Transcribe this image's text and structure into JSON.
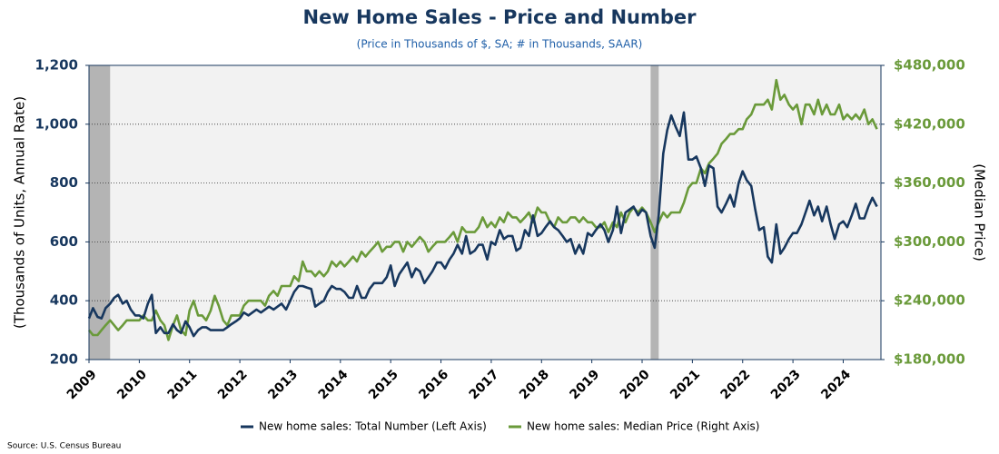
{
  "chart_data": {
    "type": "line",
    "title": "New Home Sales - Price and Number",
    "subtitle": "(Price in Thousands of $, SA; # in Thousands, SAAR)",
    "ylabel": "(Thousands of Units, Annual Rate)",
    "y2label": "(Median Price)",
    "source": "Source: U.S. Census Bureau",
    "xlim": [
      2009,
      2024.75
    ],
    "xticks": [
      2009,
      2010,
      2011,
      2012,
      2013,
      2014,
      2015,
      2016,
      2017,
      2018,
      2019,
      2020,
      2021,
      2022,
      2023,
      2024
    ],
    "ylim": [
      200,
      1200
    ],
    "yticks": [
      200,
      400,
      600,
      800,
      {
        "value": 1000,
        "label": "1,000"
      },
      {
        "value": 1200,
        "label": "1,200"
      }
    ],
    "y2lim": [
      180000,
      480000
    ],
    "y2ticks": [
      {
        "value": 180000,
        "label": "$180,000"
      },
      {
        "value": 240000,
        "label": "$240,000"
      },
      {
        "value": 300000,
        "label": "$300,000"
      },
      {
        "value": 360000,
        "label": "$360,000"
      },
      {
        "value": 420000,
        "label": "$420,000"
      },
      {
        "value": 480000,
        "label": "$480,000"
      }
    ],
    "grid": true,
    "shaded_periods": [
      [
        2009,
        2009.42
      ],
      [
        2020.17,
        2020.33
      ]
    ],
    "shade_color": "#b4b4b4",
    "background": "#f2f2f2",
    "x": [
      2009,
      2009.08,
      2009.17,
      2009.25,
      2009.33,
      2009.42,
      2009.5,
      2009.58,
      2009.67,
      2009.75,
      2009.83,
      2009.92,
      2010,
      2010.08,
      2010.17,
      2010.25,
      2010.33,
      2010.42,
      2010.5,
      2010.58,
      2010.67,
      2010.75,
      2010.83,
      2010.92,
      2011,
      2011.08,
      2011.17,
      2011.25,
      2011.33,
      2011.42,
      2011.5,
      2011.58,
      2011.67,
      2011.75,
      2011.83,
      2011.92,
      2012,
      2012.08,
      2012.17,
      2012.25,
      2012.33,
      2012.42,
      2012.5,
      2012.58,
      2012.67,
      2012.75,
      2012.83,
      2012.92,
      2013,
      2013.08,
      2013.17,
      2013.25,
      2013.33,
      2013.42,
      2013.5,
      2013.58,
      2013.67,
      2013.75,
      2013.83,
      2013.92,
      2014,
      2014.08,
      2014.17,
      2014.25,
      2014.33,
      2014.42,
      2014.5,
      2014.58,
      2014.67,
      2014.75,
      2014.83,
      2014.92,
      2015,
      2015.08,
      2015.17,
      2015.25,
      2015.33,
      2015.42,
      2015.5,
      2015.58,
      2015.67,
      2015.75,
      2015.83,
      2015.92,
      2016,
      2016.08,
      2016.17,
      2016.25,
      2016.33,
      2016.42,
      2016.5,
      2016.58,
      2016.67,
      2016.75,
      2016.83,
      2016.92,
      2017,
      2017.08,
      2017.17,
      2017.25,
      2017.33,
      2017.42,
      2017.5,
      2017.58,
      2017.67,
      2017.75,
      2017.83,
      2017.92,
      2018,
      2018.08,
      2018.17,
      2018.25,
      2018.33,
      2018.42,
      2018.5,
      2018.58,
      2018.67,
      2018.75,
      2018.83,
      2018.92,
      2019,
      2019.08,
      2019.17,
      2019.25,
      2019.33,
      2019.42,
      2019.5,
      2019.58,
      2019.67,
      2019.75,
      2019.83,
      2019.92,
      2020,
      2020.08,
      2020.17,
      2020.25,
      2020.33,
      2020.42,
      2020.5,
      2020.58,
      2020.67,
      2020.75,
      2020.83,
      2020.92,
      2021,
      2021.08,
      2021.17,
      2021.25,
      2021.33,
      2021.42,
      2021.5,
      2021.58,
      2021.67,
      2021.75,
      2021.83,
      2021.92,
      2022,
      2022.08,
      2022.17,
      2022.25,
      2022.33,
      2022.42,
      2022.5,
      2022.58,
      2022.67,
      2022.75,
      2022.83,
      2022.92,
      2023,
      2023.08,
      2023.17,
      2023.25,
      2023.33,
      2023.42,
      2023.5,
      2023.58,
      2023.67,
      2023.75,
      2023.83,
      2023.92,
      2024,
      2024.08,
      2024.17,
      2024.25,
      2024.33,
      2024.42,
      2024.5,
      2024.58,
      2024.67
    ],
    "series": [
      {
        "name": "New home sales: Total Number (Left Axis)",
        "color": "#17375e",
        "axis": "y",
        "values": [
          340,
          375,
          345,
          340,
          375,
          390,
          410,
          420,
          390,
          400,
          370,
          350,
          350,
          340,
          390,
          420,
          290,
          310,
          290,
          290,
          320,
          300,
          290,
          330,
          310,
          280,
          300,
          310,
          310,
          300,
          300,
          300,
          300,
          310,
          320,
          330,
          340,
          360,
          350,
          360,
          370,
          360,
          370,
          380,
          370,
          380,
          390,
          370,
          400,
          430,
          450,
          450,
          445,
          440,
          380,
          390,
          400,
          430,
          450,
          440,
          440,
          430,
          410,
          410,
          450,
          410,
          410,
          440,
          460,
          460,
          460,
          480,
          520,
          450,
          490,
          510,
          530,
          480,
          510,
          500,
          460,
          480,
          500,
          530,
          530,
          510,
          540,
          560,
          590,
          560,
          620,
          560,
          570,
          590,
          590,
          540,
          600,
          590,
          640,
          610,
          620,
          620,
          570,
          580,
          640,
          620,
          690,
          620,
          630,
          650,
          670,
          650,
          640,
          620,
          600,
          610,
          560,
          590,
          560,
          630,
          620,
          640,
          660,
          640,
          600,
          640,
          720,
          630,
          700,
          710,
          720,
          690,
          710,
          700,
          620,
          580,
          690,
          900,
          980,
          1030,
          990,
          960,
          1040,
          880,
          880,
          890,
          850,
          790,
          860,
          850,
          720,
          700,
          730,
          760,
          720,
          800,
          840,
          810,
          790,
          710,
          640,
          650,
          550,
          530,
          660,
          560,
          580,
          610,
          630,
          630,
          660,
          700,
          740,
          690,
          720,
          670,
          720,
          660,
          610,
          660,
          670,
          650,
          690,
          730,
          680,
          680,
          720,
          750,
          720
        ]
      },
      {
        "name": "New home sales: Median Price (Right Axis)",
        "color": "#6a9a3a",
        "axis": "y2",
        "values": [
          210000,
          205000,
          205000,
          210000,
          215000,
          220000,
          215000,
          210000,
          215000,
          220000,
          220000,
          220000,
          220000,
          225000,
          220000,
          220000,
          230000,
          220000,
          215000,
          200000,
          215000,
          225000,
          210000,
          205000,
          230000,
          240000,
          225000,
          225000,
          220000,
          230000,
          245000,
          235000,
          220000,
          215000,
          225000,
          225000,
          225000,
          235000,
          240000,
          240000,
          240000,
          240000,
          235000,
          245000,
          250000,
          245000,
          255000,
          255000,
          255000,
          265000,
          260000,
          280000,
          270000,
          270000,
          265000,
          270000,
          265000,
          270000,
          280000,
          275000,
          280000,
          275000,
          280000,
          285000,
          280000,
          290000,
          285000,
          290000,
          295000,
          300000,
          290000,
          295000,
          295000,
          300000,
          300000,
          290000,
          300000,
          295000,
          300000,
          305000,
          300000,
          290000,
          295000,
          300000,
          300000,
          300000,
          305000,
          310000,
          300000,
          315000,
          310000,
          310000,
          310000,
          315000,
          325000,
          315000,
          320000,
          315000,
          325000,
          320000,
          330000,
          325000,
          325000,
          320000,
          325000,
          330000,
          320000,
          335000,
          330000,
          330000,
          320000,
          315000,
          325000,
          320000,
          320000,
          325000,
          325000,
          320000,
          325000,
          320000,
          320000,
          315000,
          315000,
          320000,
          310000,
          320000,
          315000,
          330000,
          320000,
          330000,
          335000,
          330000,
          335000,
          330000,
          320000,
          310000,
          320000,
          330000,
          325000,
          330000,
          330000,
          330000,
          340000,
          355000,
          360000,
          360000,
          375000,
          370000,
          380000,
          385000,
          390000,
          400000,
          405000,
          410000,
          410000,
          415000,
          415000,
          425000,
          430000,
          440000,
          440000,
          440000,
          445000,
          435000,
          465000,
          445000,
          450000,
          440000,
          435000,
          440000,
          420000,
          440000,
          440000,
          430000,
          445000,
          430000,
          440000,
          430000,
          430000,
          440000,
          425000,
          430000,
          425000,
          430000,
          425000,
          435000,
          420000,
          425000,
          415000
        ]
      }
    ]
  }
}
